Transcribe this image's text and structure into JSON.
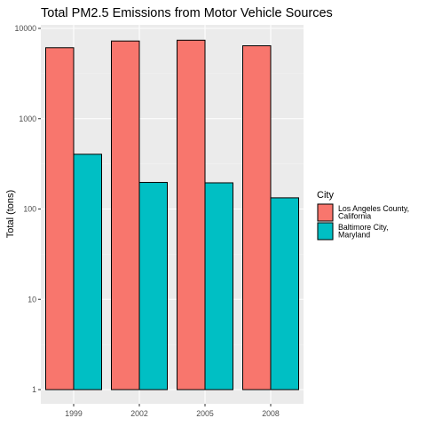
{
  "chart_data": {
    "type": "bar",
    "title": "Total PM2.5 Emissions from Motor Vehicle Sources",
    "xlabel": "",
    "ylabel": "Total (tons)",
    "y_scale": "log10",
    "ylim": [
      1,
      10000
    ],
    "y_ticks": [
      1,
      10,
      100,
      1000,
      10000
    ],
    "y_tick_labels": [
      "1",
      "10",
      "100",
      "1000",
      "10000"
    ],
    "categories": [
      "1999",
      "2002",
      "2005",
      "2008"
    ],
    "grid": true,
    "legend": {
      "title": "City",
      "placement": "right"
    },
    "series": [
      {
        "name": "Los Angeles County, California",
        "name_lines": [
          "Los Angeles County,",
          "California"
        ],
        "color": "#F8766D",
        "values": [
          6110,
          7250,
          7400,
          6420
        ]
      },
      {
        "name": "Baltimore City, Maryland",
        "name_lines": [
          "Baltimore City,",
          "Maryland"
        ],
        "color": "#00BFC4",
        "values": [
          404,
          197,
          195,
          133
        ]
      }
    ]
  }
}
